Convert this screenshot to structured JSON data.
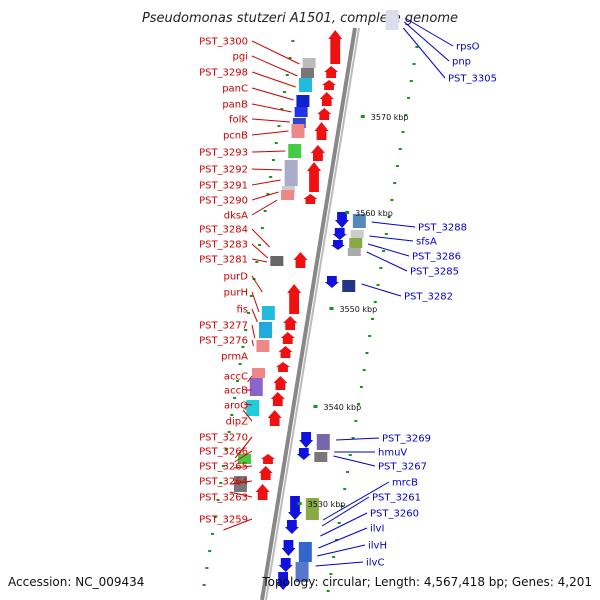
{
  "title": "Pseudomonas stutzeri A1501, complete genome",
  "footer": {
    "accession": "Accession: NC_009434",
    "topology": "Topology: circular; Length: 4,567,418 bp; Genes: 4,201"
  },
  "colors": {
    "forward": "#ee1111",
    "reverse": "#1111dd",
    "backbone": "#888888",
    "tick": "#119911",
    "left_label": "#cc0000",
    "right_label": "#0000cc"
  },
  "scale": [
    {
      "label": "3570 kbp"
    },
    {
      "label": "3560 kbp"
    },
    {
      "label": "3550 kbp"
    },
    {
      "label": "3540 kbp"
    },
    {
      "label": "3530 kbp"
    }
  ],
  "left_genes": [
    "PST_3300",
    "pgi",
    "PST_3298",
    "panC",
    "panB",
    "folK",
    "pcnB",
    "PST_3293",
    "PST_3292",
    "PST_3291",
    "PST_3290",
    "dksA",
    "PST_3284",
    "PST_3283",
    "PST_3281",
    "purD",
    "purH",
    "fis",
    "PST_3277",
    "PST_3276",
    "prmA",
    "accC",
    "accB",
    "aroQ",
    "dipZ",
    "PST_3270",
    "PST_3266",
    "PST_3265",
    "PST_3264",
    "PST_3263",
    "PST_3259"
  ],
  "right_genes": [
    "rpsO",
    "pnp",
    "PST_3305",
    "PST_3288",
    "sfsA",
    "PST_3286",
    "PST_3285",
    "PST_3282",
    "PST_3269",
    "hmuV",
    "PST_3267",
    "mrcB",
    "PST_3261",
    "PST_3260",
    "ilvI",
    "ilvH",
    "ilvC"
  ]
}
